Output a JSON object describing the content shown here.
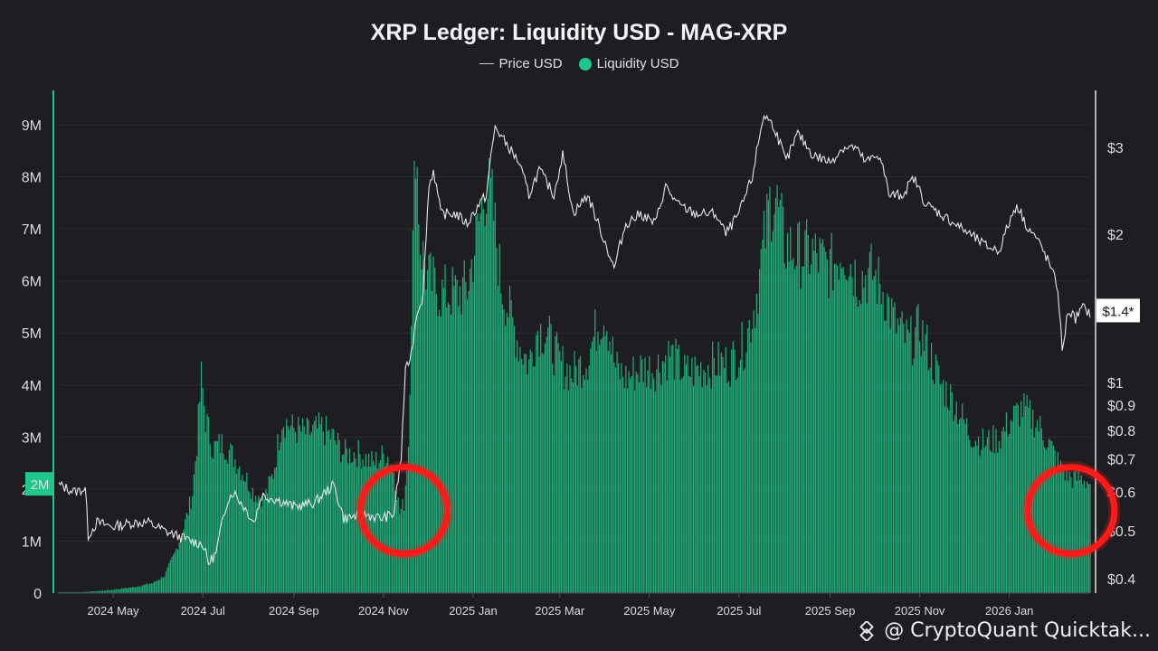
{
  "chart_data": {
    "title": "XRP Ledger: Liquidity USD - MAG-XRP",
    "type": "bar+line",
    "legend": [
      {
        "name": "Price USD",
        "kind": "line",
        "color": "#d8d8dc"
      },
      {
        "name": "Liquidity USD",
        "kind": "bar",
        "color": "#1fc88a"
      }
    ],
    "legend_position": "top-center",
    "left_axis": {
      "ticks": [
        {
          "v": 0,
          "label": "0"
        },
        {
          "v": 1000000,
          "label": "1M"
        },
        {
          "v": 2000000,
          "label": "2M"
        },
        {
          "v": 3000000,
          "label": "3M"
        },
        {
          "v": 4000000,
          "label": "4M"
        },
        {
          "v": 5000000,
          "label": "5M"
        },
        {
          "v": 6000000,
          "label": "6M"
        },
        {
          "v": 7000000,
          "label": "7M"
        },
        {
          "v": 8000000,
          "label": "8M"
        },
        {
          "v": 9000000,
          "label": "9M"
        }
      ],
      "range": [
        0,
        9700000
      ],
      "current_marker": "2M"
    },
    "right_axis": {
      "scale": "log",
      "ticks": [
        {
          "v": 0.4,
          "label": "$0.4"
        },
        {
          "v": 0.5,
          "label": "$0.5"
        },
        {
          "v": 0.6,
          "label": "$0.6"
        },
        {
          "v": 0.7,
          "label": "$0.7"
        },
        {
          "v": 0.8,
          "label": "$0.8"
        },
        {
          "v": 0.9,
          "label": "$0.9"
        },
        {
          "v": 1,
          "label": "$1"
        },
        {
          "v": 2,
          "label": "$2"
        },
        {
          "v": 3,
          "label": "$3"
        }
      ],
      "current_marker": "$1.4*"
    },
    "x_axis": {
      "ticks": [
        "2024 May",
        "2024 Jul",
        "2024 Sep",
        "2024 Nov",
        "2025 Jan",
        "2025 Mar",
        "2025 May",
        "2025 Jul",
        "2025 Sep",
        "2025 Nov",
        "2026 Jan"
      ]
    },
    "liquidity_series": {
      "name": "Liquidity USD",
      "anchors": [
        [
          "2024-03-25",
          0.02
        ],
        [
          "2024-04-10",
          0.02
        ],
        [
          "2024-04-25",
          0.05
        ],
        [
          "2024-05-15",
          0.12
        ],
        [
          "2024-05-28",
          0.2
        ],
        [
          "2024-06-05",
          0.35
        ],
        [
          "2024-06-12",
          0.8
        ],
        [
          "2024-06-18",
          1.3
        ],
        [
          "2024-06-24",
          2.0
        ],
        [
          "2024-06-27",
          3.0
        ],
        [
          "2024-06-30",
          4.3
        ],
        [
          "2024-07-03",
          3.5
        ],
        [
          "2024-07-08",
          2.9
        ],
        [
          "2024-07-15",
          3.0
        ],
        [
          "2024-07-25",
          2.6
        ],
        [
          "2024-08-05",
          2.0
        ],
        [
          "2024-08-12",
          1.9
        ],
        [
          "2024-08-18",
          2.4
        ],
        [
          "2024-08-24",
          3.5
        ],
        [
          "2024-08-31",
          3.3
        ],
        [
          "2024-09-10",
          3.2
        ],
        [
          "2024-09-20",
          3.3
        ],
        [
          "2024-09-28",
          3.1
        ],
        [
          "2024-10-05",
          2.8
        ],
        [
          "2024-10-15",
          2.8
        ],
        [
          "2024-10-25",
          2.6
        ],
        [
          "2024-11-03",
          2.8
        ],
        [
          "2024-11-08",
          2.5
        ],
        [
          "2024-11-12",
          1.6
        ],
        [
          "2024-11-15",
          1.8
        ],
        [
          "2024-11-18",
          3.0
        ],
        [
          "2024-11-20",
          5.8
        ],
        [
          "2024-11-23",
          9.2
        ],
        [
          "2024-11-26",
          7.0
        ],
        [
          "2024-12-01",
          6.3
        ],
        [
          "2024-12-10",
          6.0
        ],
        [
          "2024-12-20",
          6.0
        ],
        [
          "2024-12-28",
          6.1
        ],
        [
          "2025-01-05",
          7.4
        ],
        [
          "2025-01-10",
          8.2
        ],
        [
          "2025-01-14",
          7.8
        ],
        [
          "2025-01-20",
          6.2
        ],
        [
          "2025-01-26",
          5.6
        ],
        [
          "2025-02-01",
          5.0
        ],
        [
          "2025-02-08",
          4.6
        ],
        [
          "2025-02-14",
          5.3
        ],
        [
          "2025-02-20",
          5.2
        ],
        [
          "2025-03-01",
          4.6
        ],
        [
          "2025-03-10",
          4.4
        ],
        [
          "2025-03-20",
          4.7
        ],
        [
          "2025-03-27",
          5.4
        ],
        [
          "2025-04-01",
          5.6
        ],
        [
          "2025-04-08",
          4.5
        ],
        [
          "2025-04-15",
          4.3
        ],
        [
          "2025-04-25",
          4.5
        ],
        [
          "2025-05-05",
          4.5
        ],
        [
          "2025-05-15",
          4.8
        ],
        [
          "2025-05-25",
          4.4
        ],
        [
          "2025-06-05",
          4.5
        ],
        [
          "2025-06-15",
          4.6
        ],
        [
          "2025-06-25",
          4.6
        ],
        [
          "2025-07-05",
          5.0
        ],
        [
          "2025-07-12",
          5.8
        ],
        [
          "2025-07-18",
          7.0
        ],
        [
          "2025-07-22",
          7.8
        ],
        [
          "2025-07-26",
          7.9
        ],
        [
          "2025-08-01",
          7.0
        ],
        [
          "2025-08-10",
          6.8
        ],
        [
          "2025-08-20",
          6.8
        ],
        [
          "2025-09-01",
          6.5
        ],
        [
          "2025-09-10",
          6.9
        ],
        [
          "2025-09-20",
          6.3
        ],
        [
          "2025-09-30",
          6.4
        ],
        [
          "2025-10-08",
          6.0
        ],
        [
          "2025-10-15",
          5.4
        ],
        [
          "2025-10-25",
          5.0
        ],
        [
          "2025-11-01",
          5.3
        ],
        [
          "2025-11-08",
          4.8
        ],
        [
          "2025-11-15",
          4.2
        ],
        [
          "2025-11-25",
          3.8
        ],
        [
          "2025-12-05",
          3.2
        ],
        [
          "2025-12-15",
          3.0
        ],
        [
          "2025-12-25",
          3.1
        ],
        [
          "2026-01-03",
          3.5
        ],
        [
          "2026-01-10",
          3.7
        ],
        [
          "2026-01-20",
          3.4
        ],
        [
          "2026-01-28",
          3.0
        ],
        [
          "2026-02-05",
          2.5
        ],
        [
          "2026-02-12",
          2.3
        ],
        [
          "2026-02-20",
          2.3
        ],
        [
          "2026-02-25",
          2.2
        ]
      ],
      "unit": "M"
    },
    "price_series": {
      "name": "Price USD",
      "anchors": [
        [
          "2024-03-25",
          0.62
        ],
        [
          "2024-04-05",
          0.6
        ],
        [
          "2024-04-12",
          0.61
        ],
        [
          "2024-04-14",
          0.49
        ],
        [
          "2024-04-20",
          0.52
        ],
        [
          "2024-05-01",
          0.51
        ],
        [
          "2024-05-15",
          0.52
        ],
        [
          "2024-05-25",
          0.52
        ],
        [
          "2024-06-05",
          0.5
        ],
        [
          "2024-06-20",
          0.48
        ],
        [
          "2024-07-01",
          0.47
        ],
        [
          "2024-07-05",
          0.43
        ],
        [
          "2024-07-10",
          0.45
        ],
        [
          "2024-07-18",
          0.58
        ],
        [
          "2024-07-22",
          0.6
        ],
        [
          "2024-08-05",
          0.52
        ],
        [
          "2024-08-10",
          0.59
        ],
        [
          "2024-08-20",
          0.58
        ],
        [
          "2024-09-01",
          0.56
        ],
        [
          "2024-09-15",
          0.57
        ],
        [
          "2024-09-28",
          0.62
        ],
        [
          "2024-10-05",
          0.53
        ],
        [
          "2024-10-20",
          0.54
        ],
        [
          "2024-10-30",
          0.53
        ],
        [
          "2024-11-08",
          0.54
        ],
        [
          "2024-11-13",
          0.7
        ],
        [
          "2024-11-16",
          1.05
        ],
        [
          "2024-11-20",
          1.15
        ],
        [
          "2024-11-24",
          1.4
        ],
        [
          "2024-11-28",
          1.5
        ],
        [
          "2024-12-02",
          2.5
        ],
        [
          "2024-12-05",
          2.7
        ],
        [
          "2024-12-10",
          2.2
        ],
        [
          "2024-12-20",
          2.2
        ],
        [
          "2024-12-28",
          2.1
        ],
        [
          "2025-01-05",
          2.3
        ],
        [
          "2025-01-10",
          2.4
        ],
        [
          "2025-01-16",
          3.3
        ],
        [
          "2025-01-22",
          3.1
        ],
        [
          "2025-02-01",
          2.8
        ],
        [
          "2025-02-08",
          2.4
        ],
        [
          "2025-02-15",
          2.7
        ],
        [
          "2025-02-25",
          2.4
        ],
        [
          "2025-03-03",
          2.9
        ],
        [
          "2025-03-10",
          2.2
        ],
        [
          "2025-03-20",
          2.4
        ],
        [
          "2025-03-27",
          2.1
        ],
        [
          "2025-04-07",
          1.7
        ],
        [
          "2025-04-15",
          2.1
        ],
        [
          "2025-04-25",
          2.2
        ],
        [
          "2025-05-05",
          2.1
        ],
        [
          "2025-05-12",
          2.5
        ],
        [
          "2025-05-20",
          2.3
        ],
        [
          "2025-06-01",
          2.2
        ],
        [
          "2025-06-15",
          2.2
        ],
        [
          "2025-06-22",
          2.0
        ],
        [
          "2025-07-01",
          2.2
        ],
        [
          "2025-07-10",
          2.6
        ],
        [
          "2025-07-18",
          3.5
        ],
        [
          "2025-07-25",
          3.3
        ],
        [
          "2025-08-02",
          2.8
        ],
        [
          "2025-08-10",
          3.2
        ],
        [
          "2025-08-20",
          2.9
        ],
        [
          "2025-09-01",
          2.8
        ],
        [
          "2025-09-10",
          3.0
        ],
        [
          "2025-09-18",
          3.0
        ],
        [
          "2025-09-25",
          2.8
        ],
        [
          "2025-10-05",
          2.9
        ],
        [
          "2025-10-11",
          2.4
        ],
        [
          "2025-10-20",
          2.4
        ],
        [
          "2025-10-28",
          2.6
        ],
        [
          "2025-11-05",
          2.3
        ],
        [
          "2025-11-15",
          2.2
        ],
        [
          "2025-11-25",
          2.1
        ],
        [
          "2025-12-05",
          2.0
        ],
        [
          "2025-12-15",
          1.9
        ],
        [
          "2025-12-25",
          1.85
        ],
        [
          "2026-01-06",
          2.3
        ],
        [
          "2026-01-12",
          2.1
        ],
        [
          "2026-01-20",
          1.95
        ],
        [
          "2026-01-28",
          1.75
        ],
        [
          "2026-02-03",
          1.55
        ],
        [
          "2026-02-06",
          1.15
        ],
        [
          "2026-02-10",
          1.4
        ],
        [
          "2026-02-15",
          1.35
        ],
        [
          "2026-02-20",
          1.42
        ],
        [
          "2026-02-25",
          1.38
        ]
      ]
    },
    "annotations": [
      {
        "type": "circle",
        "date": "2024-11-15",
        "price": 0.55,
        "color": "#ff1a1a"
      },
      {
        "type": "circle",
        "date": "2026-02-12",
        "price": 0.55,
        "color": "#ff1a1a"
      }
    ]
  },
  "watermark": "@ CryptoQuant Quicktak..."
}
